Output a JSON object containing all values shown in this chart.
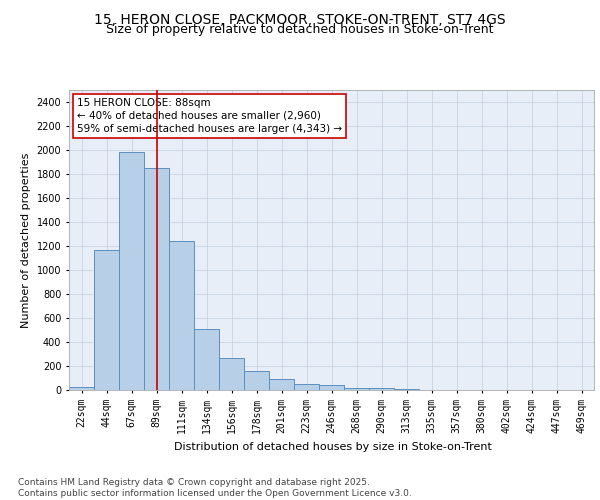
{
  "title_line1": "15, HERON CLOSE, PACKMOOR, STOKE-ON-TRENT, ST7 4GS",
  "title_line2": "Size of property relative to detached houses in Stoke-on-Trent",
  "xlabel": "Distribution of detached houses by size in Stoke-on-Trent",
  "ylabel": "Number of detached properties",
  "categories": [
    "22sqm",
    "44sqm",
    "67sqm",
    "89sqm",
    "111sqm",
    "134sqm",
    "156sqm",
    "178sqm",
    "201sqm",
    "223sqm",
    "246sqm",
    "268sqm",
    "290sqm",
    "313sqm",
    "335sqm",
    "357sqm",
    "380sqm",
    "402sqm",
    "424sqm",
    "447sqm",
    "469sqm"
  ],
  "values": [
    28,
    1170,
    1980,
    1850,
    1240,
    510,
    270,
    155,
    90,
    48,
    38,
    20,
    15,
    5,
    3,
    2,
    1,
    1,
    1,
    0,
    0
  ],
  "bar_color": "#b8cfe8",
  "bar_edge_color": "#5a8fc0",
  "ylim": [
    0,
    2500
  ],
  "yticks": [
    0,
    200,
    400,
    600,
    800,
    1000,
    1200,
    1400,
    1600,
    1800,
    2000,
    2200,
    2400
  ],
  "grid_color": "#c8d4e4",
  "background_color": "#e8eef8",
  "annotation_box_text": "15 HERON CLOSE: 88sqm\n← 40% of detached houses are smaller (2,960)\n59% of semi-detached houses are larger (4,343) →",
  "annotation_box_color": "#cc0000",
  "property_line_x": 3.0,
  "footer_text": "Contains HM Land Registry data © Crown copyright and database right 2025.\nContains public sector information licensed under the Open Government Licence v3.0.",
  "title_fontsize": 10,
  "subtitle_fontsize": 9,
  "axis_label_fontsize": 8,
  "tick_fontsize": 7,
  "annotation_fontsize": 7.5,
  "footer_fontsize": 6.5
}
